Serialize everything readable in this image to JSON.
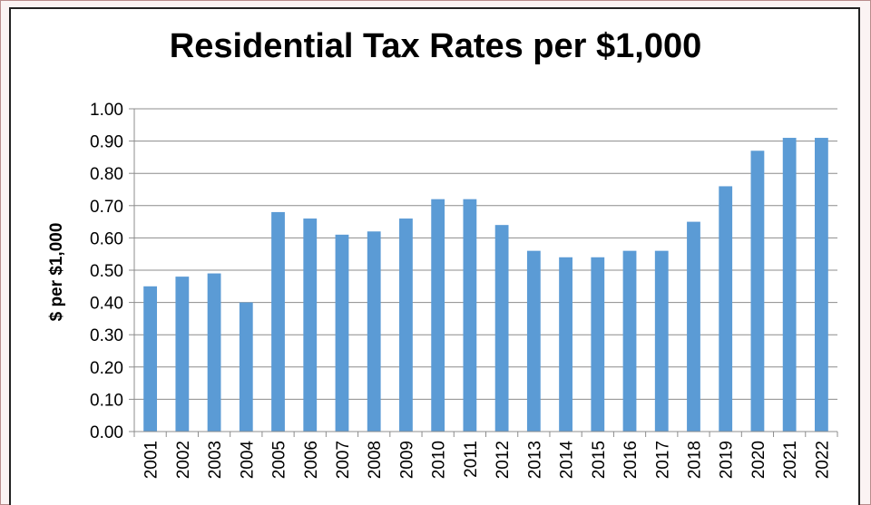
{
  "chart_data": {
    "type": "bar",
    "title": "Residential Tax Rates per $1,000",
    "xlabel": "",
    "ylabel": "$ per $1,000",
    "ylim": [
      0,
      1.0
    ],
    "y_ticks": [
      "0.00",
      "0.10",
      "0.20",
      "0.30",
      "0.40",
      "0.50",
      "0.60",
      "0.70",
      "0.80",
      "0.90",
      "1.00"
    ],
    "grid": true,
    "legend": "none",
    "bar_color": "#5b9bd5",
    "categories": [
      "2001",
      "2002",
      "2003",
      "2004",
      "2005",
      "2006",
      "2007",
      "2008",
      "2009",
      "2010",
      "2011",
      "2012",
      "2013",
      "2014",
      "2015",
      "2016",
      "2017",
      "2018",
      "2019",
      "2020",
      "2021",
      "2022"
    ],
    "values": [
      0.45,
      0.48,
      0.49,
      0.4,
      0.68,
      0.66,
      0.61,
      0.62,
      0.66,
      0.72,
      0.72,
      0.64,
      0.56,
      0.54,
      0.54,
      0.56,
      0.56,
      0.65,
      0.76,
      0.87,
      0.91,
      0.91
    ]
  }
}
